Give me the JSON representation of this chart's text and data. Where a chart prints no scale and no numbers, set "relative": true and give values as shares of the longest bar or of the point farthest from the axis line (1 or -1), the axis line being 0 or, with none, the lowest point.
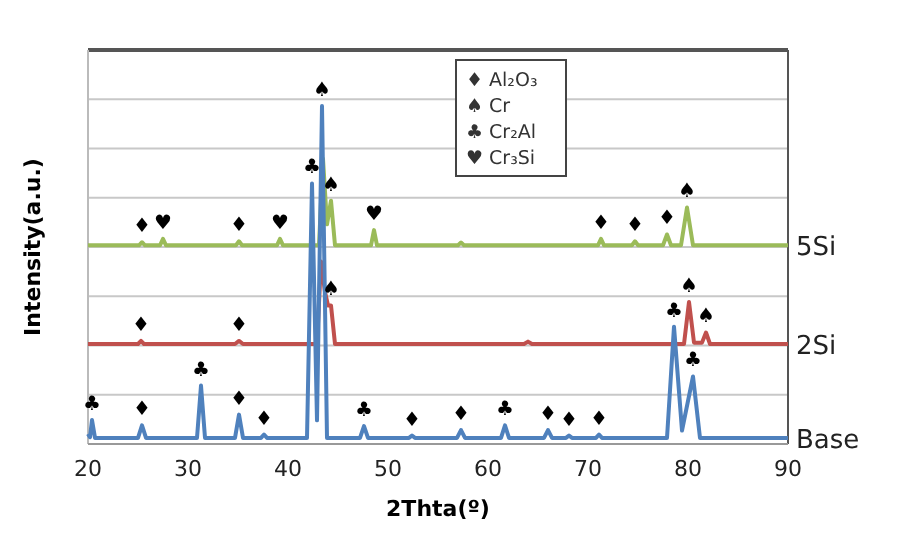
{
  "chart_data": {
    "type": "line",
    "relative": true,
    "xlabel": "2Thta(º)",
    "ylabel": "Intensity(a.u.)",
    "xlim": [
      20,
      90
    ],
    "xticks": [
      20,
      30,
      40,
      50,
      60,
      70,
      80,
      90
    ],
    "grid": "y",
    "series": [
      {
        "name": "5Si",
        "color": "#9bbb59",
        "x": [
          20,
          25.1,
          25.4,
          25.7,
          27.2,
          27.5,
          27.8,
          34.8,
          35.1,
          35.4,
          38.9,
          39.2,
          39.5,
          43.1,
          43.5,
          43.9,
          44.3,
          44.7,
          48.3,
          48.6,
          48.9,
          57.0,
          57.3,
          57.6,
          71.0,
          71.3,
          71.6,
          74.4,
          74.7,
          75.0,
          77.5,
          77.9,
          78.3,
          79.3,
          79.9,
          80.5,
          90
        ],
        "values": [
          0.588,
          0.588,
          0.597,
          0.588,
          0.588,
          0.607,
          0.588,
          0.588,
          0.6,
          0.588,
          0.588,
          0.607,
          0.588,
          0.588,
          0.844,
          0.65,
          0.72,
          0.588,
          0.588,
          0.633,
          0.588,
          0.588,
          0.596,
          0.588,
          0.588,
          0.607,
          0.588,
          0.588,
          0.6,
          0.588,
          0.588,
          0.62,
          0.588,
          0.588,
          0.7,
          0.588,
          0.588
        ]
      },
      {
        "name": "2Si",
        "color": "#c0504d",
        "x": [
          20,
          25.0,
          25.3,
          25.6,
          34.7,
          35.1,
          35.5,
          42.9,
          43.3,
          43.7,
          44.0,
          44.3,
          44.7,
          63.6,
          64.0,
          64.4,
          79.6,
          80.1,
          80.6,
          81.4,
          81.8,
          82.2,
          90
        ],
        "values": [
          0.296,
          0.296,
          0.305,
          0.296,
          0.296,
          0.305,
          0.296,
          0.296,
          0.54,
          0.45,
          0.41,
          0.41,
          0.296,
          0.296,
          0.303,
          0.296,
          0.296,
          0.42,
          0.3,
          0.3,
          0.33,
          0.296,
          0.296
        ]
      },
      {
        "name": "Base",
        "color": "#4f81bd",
        "x": [
          20,
          20.2,
          20.4,
          20.7,
          25.0,
          25.4,
          25.8,
          30.9,
          31.3,
          31.7,
          34.7,
          35.1,
          35.5,
          37.3,
          37.6,
          37.9,
          41.9,
          42.4,
          42.9,
          43.4,
          43.9,
          47.2,
          47.6,
          48.0,
          52.1,
          52.4,
          52.7,
          56.9,
          57.3,
          57.7,
          61.3,
          61.7,
          62.1,
          65.6,
          66.0,
          66.4,
          67.8,
          68.1,
          68.4,
          70.8,
          71.1,
          71.4,
          77.9,
          78.6,
          79.4,
          80.5,
          81.2,
          90
        ],
        "values": [
          0.03,
          0.02,
          0.071,
          0.018,
          0.018,
          0.055,
          0.018,
          0.018,
          0.173,
          0.018,
          0.018,
          0.087,
          0.018,
          0.018,
          0.028,
          0.018,
          0.018,
          0.771,
          0.07,
          1,
          0.018,
          0.018,
          0.053,
          0.018,
          0.018,
          0.025,
          0.018,
          0.018,
          0.041,
          0.018,
          0.018,
          0.055,
          0.018,
          0.018,
          0.041,
          0.018,
          0.018,
          0.025,
          0.018,
          0.018,
          0.028,
          0.018,
          0.018,
          0.347,
          0.04,
          0.2,
          0.018,
          0.018
        ]
      }
    ],
    "annotations": [
      "♦ Al₂O₃",
      "♠ Cr",
      "♣ Cr₂Al",
      "♥ Cr₃Si",
      {
        "text": "♣",
        "x": 20.4,
        "y": 0.071
      },
      {
        "text": "♦",
        "x": 25.4,
        "y": 0.055
      },
      {
        "text": "♣",
        "x": 31.3,
        "y": 0.173
      },
      {
        "text": "♦",
        "x": 35.1,
        "y": 0.087
      },
      {
        "text": "♦",
        "x": 37.6,
        "y": 0.028
      },
      {
        "text": "♣",
        "x": 42.4,
        "y": 0.771
      },
      {
        "text": "♠",
        "x": 43.4,
        "y": 1
      },
      {
        "text": "♣",
        "x": 47.6,
        "y": 0.053
      },
      {
        "text": "♦",
        "x": 52.4,
        "y": 0.025
      },
      {
        "text": "♦",
        "x": 57.3,
        "y": 0.041
      },
      {
        "text": "♣",
        "x": 61.7,
        "y": 0.055
      },
      {
        "text": "♦",
        "x": 66.0,
        "y": 0.041
      },
      {
        "text": "♦",
        "x": 68.1,
        "y": 0.025
      },
      {
        "text": "♦",
        "x": 71.1,
        "y": 0.028
      },
      {
        "text": "♣",
        "x": 78.6,
        "y": 0.347
      },
      {
        "text": "♣",
        "x": 80.5,
        "y": 0.2
      },
      {
        "text": "♦",
        "x": 25.3,
        "y": 0.305
      },
      {
        "text": "♦",
        "x": 35.1,
        "y": 0.305
      },
      {
        "text": "♠",
        "x": 44.3,
        "y": 0.41
      },
      {
        "text": "♠",
        "x": 80.1,
        "y": 0.42
      },
      {
        "text": "♠",
        "x": 81.8,
        "y": 0.33
      },
      {
        "text": "♦",
        "x": 25.4,
        "y": 0.597
      },
      {
        "text": "♥",
        "x": 27.5,
        "y": 0.607
      },
      {
        "text": "♦",
        "x": 35.1,
        "y": 0.6
      },
      {
        "text": "♥",
        "x": 39.2,
        "y": 0.607
      },
      {
        "text": "♠",
        "x": 44.3,
        "y": 0.72
      },
      {
        "text": "♥",
        "x": 48.6,
        "y": 0.633
      },
      {
        "text": "♦",
        "x": 71.3,
        "y": 0.607
      },
      {
        "text": "♦",
        "x": 74.7,
        "y": 0.6
      },
      {
        "text": "♦",
        "x": 77.9,
        "y": 0.62
      },
      {
        "text": "♠",
        "x": 79.9,
        "y": 0.7
      }
    ]
  }
}
